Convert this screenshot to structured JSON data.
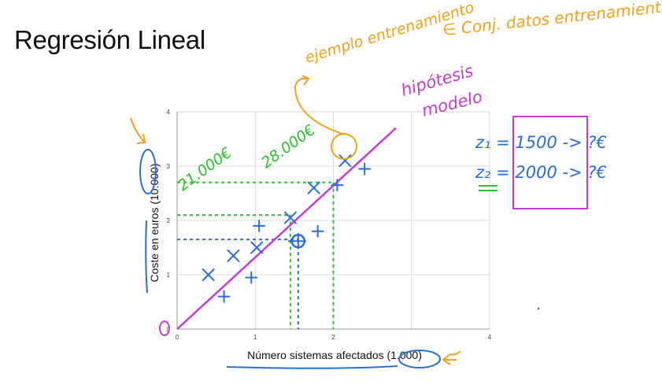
{
  "slide": {
    "title": "Regresión Lineal"
  },
  "colors": {
    "handwriting_blue": "#2a6fd6",
    "handwriting_green": "#2cc22c",
    "handwriting_orange": "#f2a21b",
    "handwriting_purple": "#c63ad6",
    "grid": "#d9d9d9"
  },
  "chart_data": {
    "type": "scatter",
    "xlabel": "Número sistemas afectados (1.000)",
    "ylabel": "Coste en euros (10.000)",
    "xlim": [
      0,
      4
    ],
    "ylim": [
      0,
      4
    ],
    "x_ticks": [
      "0",
      "1",
      "2",
      "4"
    ],
    "y_ticks": [
      "0",
      "1",
      "2",
      "3",
      "4"
    ],
    "grid": true,
    "points": [
      [
        0.4,
        1.0
      ],
      [
        0.6,
        0.6
      ],
      [
        0.72,
        1.35
      ],
      [
        0.95,
        0.95
      ],
      [
        1.02,
        1.5
      ],
      [
        1.05,
        1.9
      ],
      [
        1.45,
        2.05
      ],
      [
        1.8,
        1.8
      ],
      [
        1.75,
        2.6
      ],
      [
        2.05,
        2.65
      ],
      [
        2.15,
        3.1
      ],
      [
        2.4,
        2.95
      ]
    ],
    "regression_line": {
      "x": [
        0,
        2.8
      ],
      "y": [
        0,
        3.7
      ]
    },
    "predicted_point": [
      1.55,
      1.62
    ],
    "guide_lines": {
      "blue": {
        "x": 1.55,
        "y": 1.65
      },
      "green": [
        {
          "x": 1.45,
          "y": 2.1
        },
        {
          "x": 2.0,
          "y": 2.7
        }
      ]
    }
  },
  "annotations": {
    "ejemplo_entrenamiento": "ejemplo entrenamiento",
    "conjunto_datos": "∈ Conj. datos entrenamiento",
    "hipotesis": "hipótesis",
    "modelo": "modelo",
    "price_21000": "21.000€",
    "price_28000": "28.000€",
    "z1": "z₁ = 1500 -> ?€",
    "z2": "z₂ = 2000 -> ?€"
  }
}
